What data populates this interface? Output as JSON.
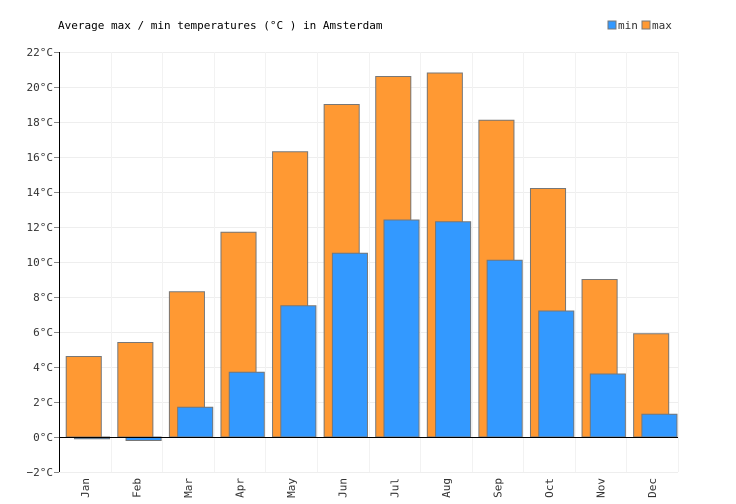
{
  "chart_data": {
    "type": "bar",
    "title": "Average max / min temperatures (°C ) in Amsterdam",
    "xlabel": "",
    "ylabel": "",
    "categories": [
      "Jan",
      "Feb",
      "Mar",
      "Apr",
      "May",
      "Jun",
      "Jul",
      "Aug",
      "Sep",
      "Oct",
      "Nov",
      "Dec"
    ],
    "series": [
      {
        "name": "max",
        "color": "#ff9933",
        "values": [
          4.6,
          5.4,
          8.3,
          11.7,
          16.3,
          19.0,
          20.6,
          20.8,
          18.1,
          14.2,
          9.0,
          5.9
        ]
      },
      {
        "name": "min",
        "color": "#3399ff",
        "values": [
          -0.1,
          -0.2,
          1.7,
          3.7,
          7.5,
          10.5,
          12.4,
          12.3,
          10.1,
          7.2,
          3.6,
          1.3
        ]
      }
    ],
    "ylim": [
      -2,
      22
    ],
    "yticks": [
      -2,
      0,
      2,
      4,
      6,
      8,
      10,
      12,
      14,
      16,
      18,
      20,
      22
    ],
    "ytick_labels": [
      "−2°C",
      "0°C",
      "2°C",
      "4°C",
      "6°C",
      "8°C",
      "10°C",
      "12°C",
      "14°C",
      "16°C",
      "18°C",
      "20°C",
      "22°C"
    ],
    "grid": true,
    "legend_position": "top-right"
  }
}
